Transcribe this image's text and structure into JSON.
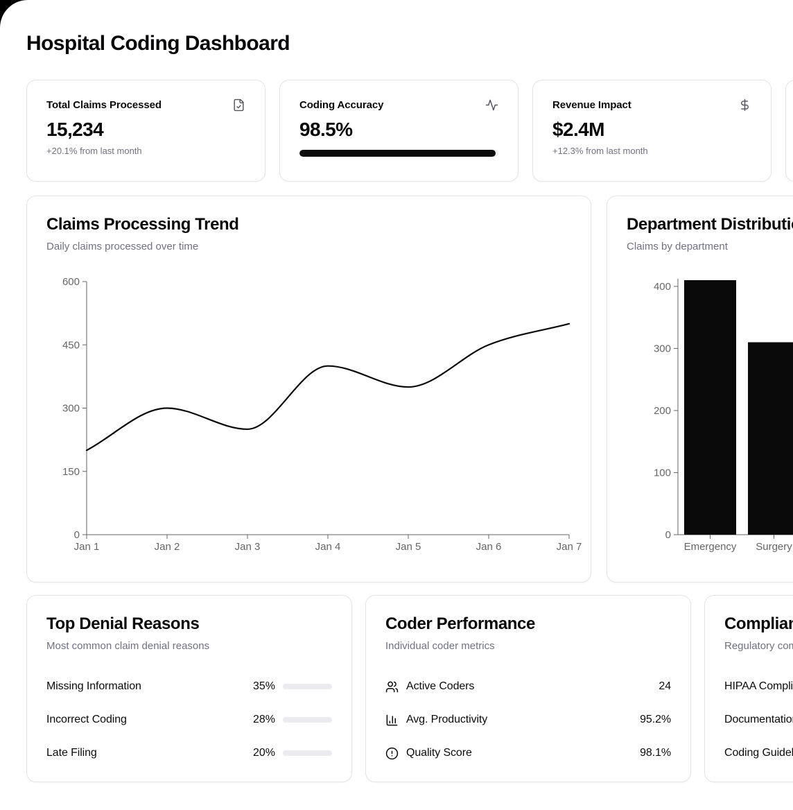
{
  "page": {
    "title": "Hospital Coding Dashboard"
  },
  "stats": [
    {
      "icon": "file-check-icon",
      "label": "Total Claims Processed",
      "value": "15,234",
      "sub": "+20.1% from last month"
    },
    {
      "icon": "activity-icon",
      "label": "Coding Accuracy",
      "value": "98.5%",
      "progress": 98.5
    },
    {
      "icon": "dollar-icon",
      "label": "Revenue Impact",
      "value": "$2.4M",
      "sub": "+12.3% from last month"
    },
    {
      "icon": "",
      "label": "",
      "value": "",
      "sub": ""
    }
  ],
  "chart_data": [
    {
      "type": "line",
      "title": "Claims Processing Trend",
      "subtitle": "Daily claims processed over time",
      "x": [
        "Jan 1",
        "Jan 2",
        "Jan 3",
        "Jan 4",
        "Jan 5",
        "Jan 6",
        "Jan 7"
      ],
      "values": [
        200,
        300,
        250,
        400,
        350,
        450,
        500
      ],
      "xlabel": "",
      "ylabel": "",
      "ylim": [
        0,
        600
      ],
      "yticks": [
        0,
        150,
        300,
        450,
        600
      ],
      "grid": false,
      "legend": false,
      "line_color": "#0a0a0a",
      "axis_color": "#666666"
    },
    {
      "type": "bar",
      "title": "Department Distribution",
      "subtitle": "Claims by department",
      "categories": [
        "Emergency",
        "Surgery"
      ],
      "values": [
        410,
        310
      ],
      "xlabel": "",
      "ylabel": "",
      "ylim": [
        0,
        410
      ],
      "yticks": [
        0,
        100,
        200,
        300,
        400
      ],
      "grid": false,
      "legend": false,
      "bar_color": "#0a0a0a",
      "axis_color": "#666666"
    }
  ],
  "denials": {
    "title": "Top Denial Reasons",
    "subtitle": "Most common claim denial reasons",
    "items": [
      {
        "label": "Missing Information",
        "pct": "35%",
        "value": 35
      },
      {
        "label": "Incorrect Coding",
        "pct": "28%",
        "value": 28
      },
      {
        "label": "Late Filing",
        "pct": "20%",
        "value": 20
      }
    ]
  },
  "coders": {
    "title": "Coder Performance",
    "subtitle": "Individual coder metrics",
    "items": [
      {
        "icon": "users-icon",
        "label": "Active Coders",
        "value": "24"
      },
      {
        "icon": "bar-chart-icon",
        "label": "Avg. Productivity",
        "value": "95.2%"
      },
      {
        "icon": "alert-circle-icon",
        "label": "Quality Score",
        "value": "98.1%"
      }
    ]
  },
  "compliance": {
    "title": "Compliance",
    "subtitle": "Regulatory compliance",
    "items": [
      {
        "label": "HIPAA Compliance"
      },
      {
        "label": "Documentation"
      },
      {
        "label": "Coding Guidelines"
      }
    ]
  }
}
